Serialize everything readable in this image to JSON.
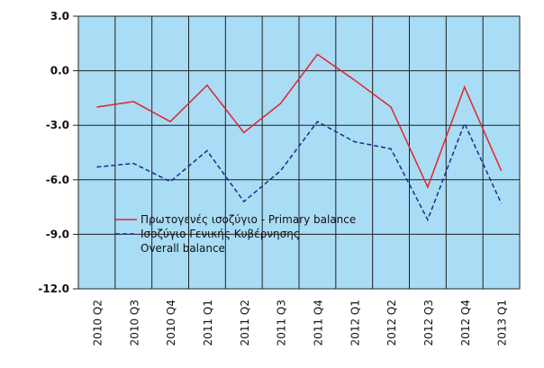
{
  "chart_data": {
    "type": "line",
    "categories": [
      "2010 Q2",
      "2010 Q3",
      "2010 Q4",
      "2011 Q1",
      "2011 Q2",
      "2011 Q3",
      "2011 Q4",
      "2012 Q1",
      "2012 Q2",
      "2012 Q3",
      "2012 Q4",
      "2013 Q1"
    ],
    "series": [
      {
        "name": "Πρωτογενές ισοζύγιο - Primary balance",
        "color": "#e3242b",
        "style": "solid",
        "values": [
          -2.0,
          -1.7,
          -2.8,
          -0.8,
          -3.4,
          -1.8,
          0.9,
          -0.5,
          -2.0,
          -6.4,
          -0.9,
          -5.5
        ]
      },
      {
        "name": "Ισοζύγιο Γενικής Κυβέρνησης\nOverall balance",
        "color": "#1f2a8a",
        "style": "dashed",
        "values": [
          -5.3,
          -5.1,
          -6.1,
          -4.4,
          -7.2,
          -5.5,
          -2.8,
          -3.9,
          -4.3,
          -8.2,
          -2.9,
          -7.3
        ]
      }
    ],
    "ylim": [
      -12,
      3
    ],
    "yticks": [
      {
        "value": -12,
        "label": "-12.0"
      },
      {
        "value": -9,
        "label": "-9.0"
      },
      {
        "value": -6,
        "label": "-6.0"
      },
      {
        "value": -3,
        "label": "-3.0"
      },
      {
        "value": 0,
        "label": "0.0"
      },
      {
        "value": 3,
        "label": "3.0"
      }
    ],
    "grid": true,
    "background": "#a9dcf5",
    "legend": "lower left"
  }
}
